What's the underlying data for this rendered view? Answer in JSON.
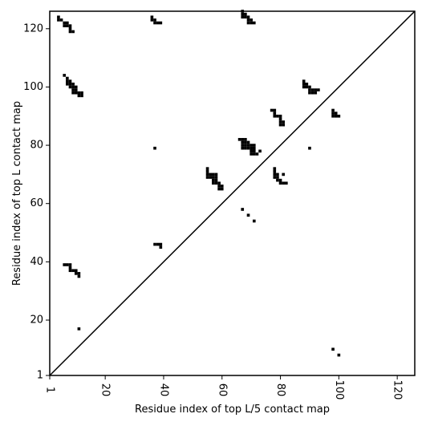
{
  "chart_data": {
    "type": "scatter",
    "xlabel": "Residue index of top L/5 contact map",
    "ylabel": "Residue index of top L contact map",
    "xlim": [
      1,
      126
    ],
    "ylim": [
      1,
      126
    ],
    "xticks": [
      1,
      20,
      40,
      60,
      80,
      100,
      120
    ],
    "yticks": [
      1,
      20,
      40,
      60,
      80,
      100,
      120
    ],
    "diagonal": true,
    "grid": false,
    "legend": "none",
    "colors": {
      "marker": "#000000",
      "background": "#ffffff",
      "axis": "#000000"
    },
    "upper_triangle_points": [
      [
        4,
        124
      ],
      [
        4,
        123
      ],
      [
        5,
        123
      ],
      [
        6,
        122
      ],
      [
        6,
        121
      ],
      [
        7,
        122
      ],
      [
        7,
        121
      ],
      [
        8,
        121
      ],
      [
        8,
        120
      ],
      [
        8,
        119
      ],
      [
        9,
        119
      ],
      [
        36,
        124
      ],
      [
        36,
        123
      ],
      [
        37,
        123
      ],
      [
        37,
        122
      ],
      [
        38,
        122
      ],
      [
        39,
        122
      ],
      [
        67,
        126
      ],
      [
        67,
        125
      ],
      [
        67,
        124
      ],
      [
        68,
        125
      ],
      [
        68,
        124
      ],
      [
        69,
        124
      ],
      [
        69,
        123
      ],
      [
        69,
        122
      ],
      [
        70,
        123
      ],
      [
        70,
        122
      ],
      [
        71,
        122
      ],
      [
        6,
        104
      ],
      [
        7,
        103
      ],
      [
        7,
        102
      ],
      [
        7,
        101
      ],
      [
        8,
        102
      ],
      [
        8,
        101
      ],
      [
        8,
        100
      ],
      [
        9,
        101
      ],
      [
        9,
        100
      ],
      [
        9,
        99
      ],
      [
        9,
        98
      ],
      [
        10,
        100
      ],
      [
        10,
        99
      ],
      [
        10,
        98
      ],
      [
        11,
        98
      ],
      [
        11,
        97
      ],
      [
        12,
        98
      ],
      [
        12,
        97
      ],
      [
        88,
        102
      ],
      [
        88,
        101
      ],
      [
        88,
        100
      ],
      [
        89,
        101
      ],
      [
        89,
        100
      ],
      [
        90,
        100
      ],
      [
        90,
        99
      ],
      [
        90,
        98
      ],
      [
        91,
        99
      ],
      [
        91,
        98
      ],
      [
        92,
        99
      ],
      [
        92,
        98
      ],
      [
        93,
        99
      ],
      [
        77,
        92
      ],
      [
        78,
        92
      ],
      [
        78,
        91
      ],
      [
        78,
        90
      ],
      [
        79,
        90
      ],
      [
        80,
        90
      ],
      [
        80,
        89
      ],
      [
        80,
        88
      ],
      [
        80,
        87
      ],
      [
        81,
        88
      ],
      [
        81,
        87
      ],
      [
        98,
        92
      ],
      [
        98,
        91
      ],
      [
        98,
        90
      ],
      [
        99,
        91
      ],
      [
        99,
        90
      ],
      [
        100,
        90
      ],
      [
        37,
        79
      ],
      [
        90,
        79
      ],
      [
        66,
        82
      ],
      [
        67,
        82
      ],
      [
        67,
        81
      ],
      [
        67,
        80
      ],
      [
        67,
        79
      ],
      [
        68,
        82
      ],
      [
        68,
        81
      ],
      [
        68,
        80
      ],
      [
        68,
        79
      ],
      [
        69,
        81
      ],
      [
        69,
        80
      ],
      [
        69,
        79
      ],
      [
        70,
        80
      ],
      [
        70,
        79
      ],
      [
        70,
        78
      ],
      [
        70,
        77
      ],
      [
        71,
        80
      ],
      [
        71,
        79
      ],
      [
        71,
        78
      ],
      [
        71,
        77
      ],
      [
        72,
        77
      ],
      [
        73,
        78
      ],
      [
        55,
        72
      ],
      [
        55,
        71
      ],
      [
        55,
        70
      ],
      [
        55,
        69
      ],
      [
        56,
        70
      ],
      [
        56,
        69
      ],
      [
        57,
        70
      ],
      [
        57,
        69
      ],
      [
        57,
        68
      ],
      [
        57,
        67
      ],
      [
        58,
        70
      ],
      [
        58,
        69
      ],
      [
        58,
        68
      ],
      [
        58,
        67
      ],
      [
        59,
        67
      ],
      [
        59,
        66
      ],
      [
        59,
        65
      ],
      [
        60,
        66
      ],
      [
        60,
        65
      ],
      [
        78,
        72
      ],
      [
        78,
        71
      ],
      [
        78,
        70
      ],
      [
        78,
        69
      ],
      [
        79,
        70
      ],
      [
        79,
        69
      ],
      [
        79,
        68
      ],
      [
        80,
        68
      ],
      [
        80,
        67
      ],
      [
        81,
        70
      ],
      [
        81,
        67
      ],
      [
        82,
        67
      ],
      [
        67,
        58
      ],
      [
        69,
        56
      ],
      [
        71,
        54
      ],
      [
        37,
        46
      ],
      [
        38,
        46
      ],
      [
        39,
        46
      ],
      [
        39,
        45
      ],
      [
        6,
        39
      ],
      [
        7,
        39
      ],
      [
        8,
        39
      ],
      [
        8,
        38
      ],
      [
        8,
        37
      ],
      [
        9,
        37
      ],
      [
        10,
        37
      ],
      [
        10,
        36
      ],
      [
        11,
        36
      ],
      [
        11,
        35
      ],
      [
        11,
        17
      ],
      [
        98,
        10
      ],
      [
        100,
        8
      ]
    ]
  }
}
